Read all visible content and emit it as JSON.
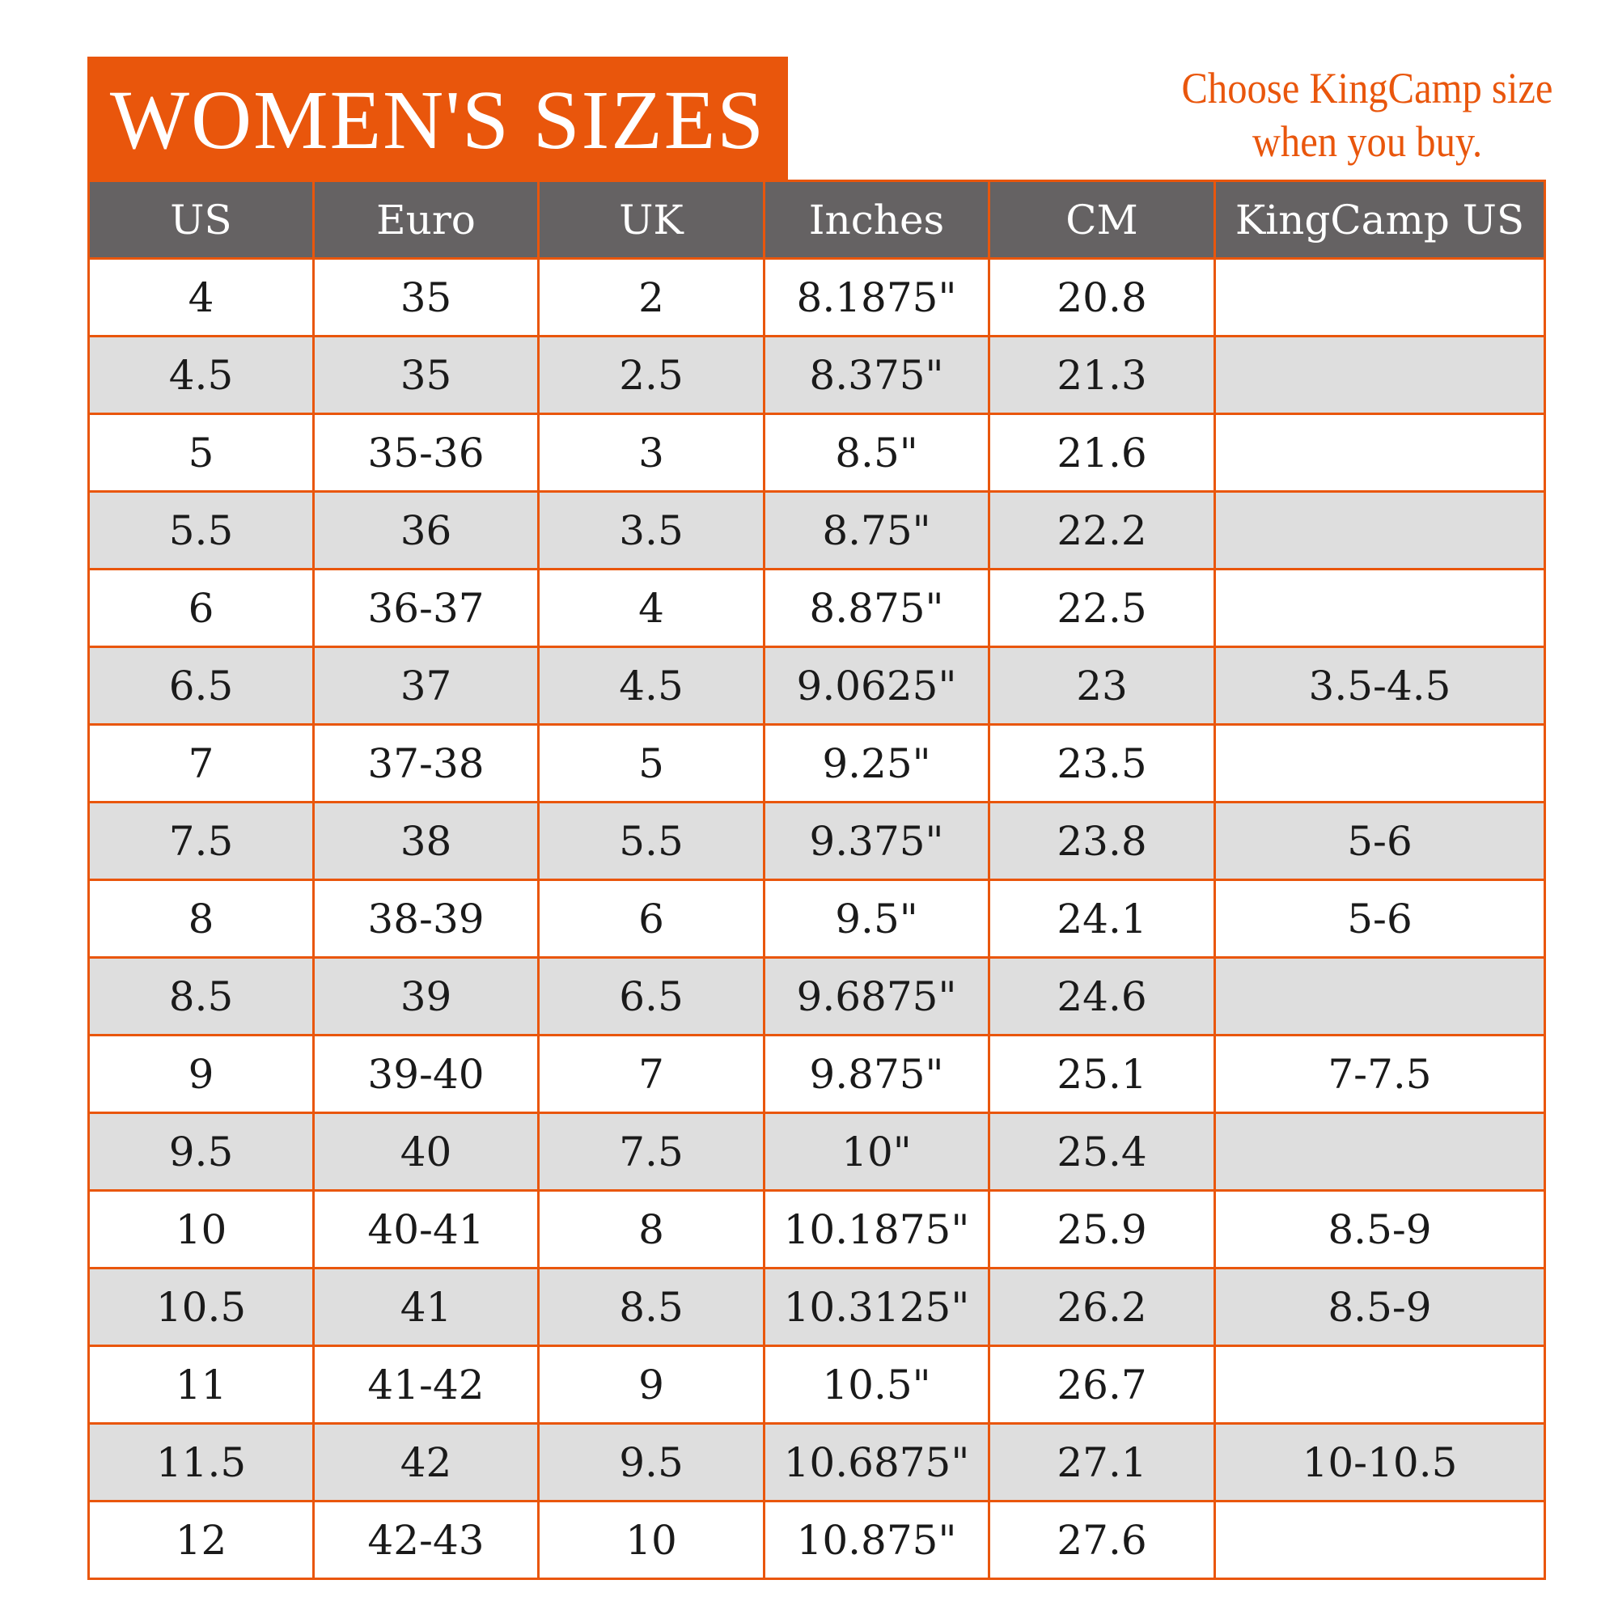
{
  "title": "WOMEN'S SIZES",
  "note": {
    "line1": "Choose KingCamp size",
    "line2": "when you buy."
  },
  "colors": {
    "accent": "#E9560C",
    "header_bg": "#656263",
    "stripe_bg": "#DEDEDE"
  },
  "chart_data": {
    "type": "table",
    "title": "WOMEN'S SIZES",
    "columns": [
      "US",
      "Euro",
      "UK",
      "Inches",
      "CM",
      "KingCamp US"
    ],
    "rows": [
      [
        "4",
        "35",
        "2",
        "8.1875\"",
        "20.8",
        ""
      ],
      [
        "4.5",
        "35",
        "2.5",
        "8.375\"",
        "21.3",
        ""
      ],
      [
        "5",
        "35-36",
        "3",
        "8.5\"",
        "21.6",
        ""
      ],
      [
        "5.5",
        "36",
        "3.5",
        "8.75\"",
        "22.2",
        ""
      ],
      [
        "6",
        "36-37",
        "4",
        "8.875\"",
        "22.5",
        ""
      ],
      [
        "6.5",
        "37",
        "4.5",
        "9.0625\"",
        "23",
        "3.5-4.5"
      ],
      [
        "7",
        "37-38",
        "5",
        "9.25\"",
        "23.5",
        ""
      ],
      [
        "7.5",
        "38",
        "5.5",
        "9.375\"",
        "23.8",
        "5-6"
      ],
      [
        "8",
        "38-39",
        "6",
        "9.5\"",
        "24.1",
        "5-6"
      ],
      [
        "8.5",
        "39",
        "6.5",
        "9.6875\"",
        "24.6",
        ""
      ],
      [
        "9",
        "39-40",
        "7",
        "9.875\"",
        "25.1",
        "7-7.5"
      ],
      [
        "9.5",
        "40",
        "7.5",
        "10\"",
        "25.4",
        ""
      ],
      [
        "10",
        "40-41",
        "8",
        "10.1875\"",
        "25.9",
        "8.5-9"
      ],
      [
        "10.5",
        "41",
        "8.5",
        "10.3125\"",
        "26.2",
        "8.5-9"
      ],
      [
        "11",
        "41-42",
        "9",
        "10.5\"",
        "26.7",
        ""
      ],
      [
        "11.5",
        "42",
        "9.5",
        "10.6875\"",
        "27.1",
        "10-10.5"
      ],
      [
        "12",
        "42-43",
        "10",
        "10.875\"",
        "27.6",
        ""
      ]
    ]
  }
}
